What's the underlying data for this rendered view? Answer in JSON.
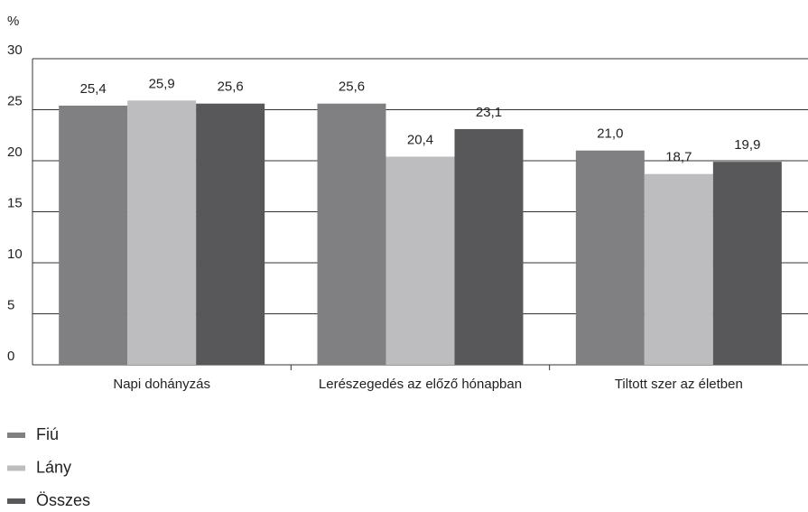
{
  "chart_data": {
    "type": "bar",
    "y_label": "%",
    "categories": [
      "Napi dohányzás",
      "Lerészegedés az előző hónapban",
      "Tiltott szer az életben"
    ],
    "series": [
      {
        "name": "Fiú",
        "color": "#808083",
        "values": [
          25.4,
          25.6,
          21.0
        ],
        "value_labels": [
          "25,4",
          "25,6",
          "21,0"
        ]
      },
      {
        "name": "Lány",
        "color": "#bdbdbf",
        "values": [
          25.9,
          20.4,
          18.7
        ],
        "value_labels": [
          "25,9",
          "20,4",
          "18,7"
        ]
      },
      {
        "name": "Összes",
        "color": "#58585a",
        "values": [
          25.6,
          23.1,
          19.9
        ],
        "value_labels": [
          "25,6",
          "23,1",
          "19,9"
        ]
      }
    ],
    "ylim": [
      0,
      30
    ],
    "yticks": [
      0,
      5,
      10,
      15,
      20,
      25,
      30
    ],
    "grid": true,
    "legend": "bottom-left"
  }
}
